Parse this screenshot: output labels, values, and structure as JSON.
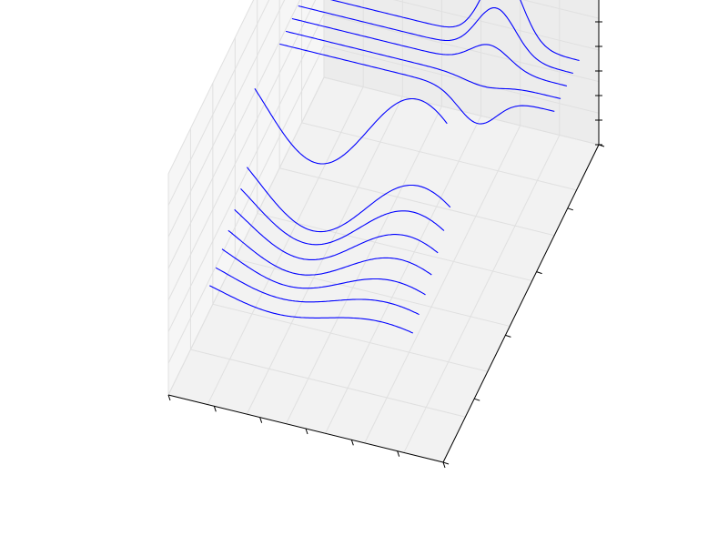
{
  "chart_data": {
    "type": "line",
    "projection": "3d",
    "title": "",
    "xlabel": "",
    "ylabel": "",
    "zlabel": "",
    "grid": true,
    "legend": "none",
    "tick_labels": "none",
    "colors": {
      "line": "#0000ff",
      "pane_back": "#ececec",
      "pane_floor": "#f2f2f2",
      "pane_side": "#f6f6f6",
      "grid": "#e0e0e0",
      "axis": "#000000"
    },
    "xlim": [
      0,
      1
    ],
    "ylim": [
      0,
      1
    ],
    "zlim": [
      0,
      1
    ],
    "series": [
      {
        "curve": "bump",
        "y": 0.875,
        "z_base": 0.56,
        "z_peak": 0.32,
        "peak_x": 0.72,
        "width": 0.1
      },
      {
        "curve": "bump",
        "y": 0.835,
        "z_base": 0.56,
        "z_peak": 0.21,
        "peak_x": 0.72,
        "width": 0.1
      },
      {
        "curve": "bump",
        "y": 0.795,
        "z_base": 0.56,
        "z_peak": 0.1,
        "peak_x": 0.72,
        "width": 0.1
      },
      {
        "curve": "bump",
        "y": 0.755,
        "z_base": 0.56,
        "z_peak": -0.03,
        "peak_x": 0.72,
        "width": 0.1
      },
      {
        "curve": "bump",
        "y": 0.715,
        "z_base": 0.56,
        "z_peak": -0.14,
        "peak_x": 0.72,
        "width": 0.1
      },
      {
        "curve": "wave",
        "y": 0.555,
        "z_base": 0.52,
        "amplitude": 0.2,
        "start_x": 0.0,
        "end_x": 0.7
      },
      {
        "curve": "wave",
        "y": 0.505,
        "z_base": 0.25,
        "amplitude": 0.16,
        "start_x": 0.0,
        "end_x": 0.74
      },
      {
        "curve": "wave",
        "y": 0.465,
        "z_base": 0.22,
        "amplitude": 0.13,
        "start_x": 0.0,
        "end_x": 0.74
      },
      {
        "curve": "wave",
        "y": 0.425,
        "z_base": 0.19,
        "amplitude": 0.11,
        "start_x": 0.0,
        "end_x": 0.74
      },
      {
        "curve": "wave",
        "y": 0.385,
        "z_base": 0.16,
        "amplitude": 0.09,
        "start_x": 0.0,
        "end_x": 0.74
      },
      {
        "curve": "wave",
        "y": 0.345,
        "z_base": 0.14,
        "amplitude": 0.07,
        "start_x": 0.0,
        "end_x": 0.74
      },
      {
        "curve": "wave",
        "y": 0.305,
        "z_base": 0.12,
        "amplitude": 0.05,
        "start_x": 0.0,
        "end_x": 0.74
      },
      {
        "curve": "wave",
        "y": 0.265,
        "z_base": 0.1,
        "amplitude": 0.04,
        "start_x": 0.0,
        "end_x": 0.74
      }
    ]
  }
}
